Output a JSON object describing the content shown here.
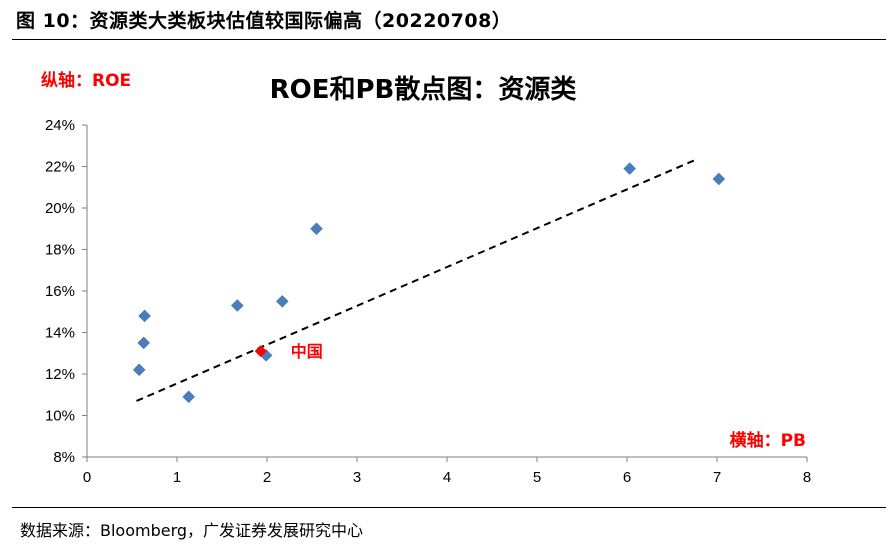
{
  "caption": "图 10：资源类大类板块估值较国际偏高（20220708）",
  "source": "数据来源：Bloomberg，广发证券发展研究中心",
  "chart_data": {
    "type": "scatter",
    "title": "ROE和PB散点图：资源类",
    "y_axis_note": "纵轴：ROE",
    "x_axis_note": "横轴：PB",
    "xlim": [
      0,
      8
    ],
    "ylim": [
      8,
      24
    ],
    "x_ticks": [
      "0",
      "1",
      "2",
      "3",
      "4",
      "5",
      "6",
      "7",
      "8"
    ],
    "y_ticks": [
      "8%",
      "10%",
      "12%",
      "14%",
      "16%",
      "18%",
      "20%",
      "22%",
      "24%"
    ],
    "grid": false,
    "legend": "none",
    "series": [
      {
        "points": [
          {
            "x": 0.58,
            "y": 12.2
          },
          {
            "x": 0.63,
            "y": 13.5
          },
          {
            "x": 0.64,
            "y": 14.8
          },
          {
            "x": 1.13,
            "y": 10.9
          },
          {
            "x": 1.67,
            "y": 15.3
          },
          {
            "x": 1.99,
            "y": 12.9
          },
          {
            "x": 2.17,
            "y": 15.5
          },
          {
            "x": 2.55,
            "y": 19.0
          },
          {
            "x": 6.03,
            "y": 21.9
          },
          {
            "x": 7.02,
            "y": 21.4
          }
        ],
        "color": "#4a7ebb"
      }
    ],
    "highlight": {
      "label": "中国",
      "x": 1.93,
      "y": 13.1,
      "color": "#ff0000"
    },
    "trendline": {
      "x": [
        0.55,
        6.75
      ],
      "y": [
        10.7,
        22.3
      ],
      "style": "dashed",
      "color": "#000000"
    }
  }
}
